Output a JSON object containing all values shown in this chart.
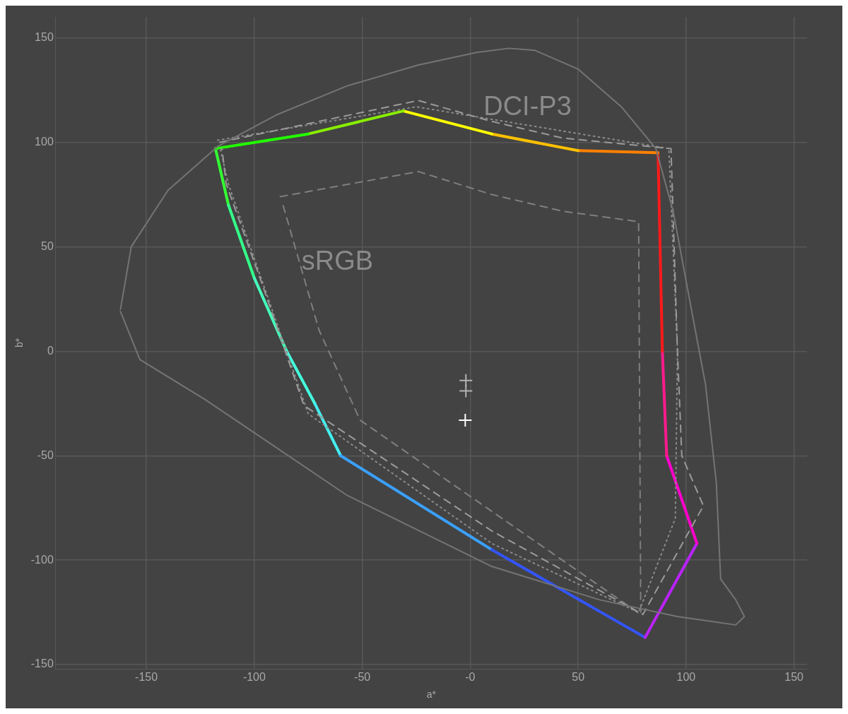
{
  "chart_data": {
    "type": "line",
    "xlabel": "a*",
    "ylabel": "b*",
    "xlim": [
      -192,
      156
    ],
    "ylim": [
      -152,
      160
    ],
    "xticks": [
      -150,
      -100,
      -50,
      {
        "value": 0,
        "label": "-0"
      },
      50,
      100,
      150
    ],
    "yticks": [
      -150,
      -100,
      -50,
      0,
      50,
      100,
      150
    ],
    "grid": true,
    "legend": false,
    "annotations": [
      "DCI-P3",
      "sRGB"
    ],
    "series": [
      {
        "line_style": "solid",
        "color": "#747474",
        "x": [
          -162,
          -157,
          -140,
          -117,
          -90,
          -57,
          -24,
          3,
          18,
          30,
          50,
          70,
          86,
          94,
          103,
          109,
          114,
          115,
          116,
          123,
          127,
          123,
          96,
          60,
          10,
          -57,
          -90,
          -123,
          -153,
          -162
        ],
        "values": [
          20,
          50,
          77,
          98,
          113,
          127,
          137,
          143,
          145,
          144,
          135,
          117,
          97,
          67,
          17,
          -16,
          -63,
          -86,
          -109,
          -119,
          -127,
          -131,
          -127,
          -119,
          -103,
          -69,
          -46,
          -23,
          -4,
          19
        ]
      },
      {
        "line_style": "dashed",
        "color": "#9a9a9a",
        "x": [
          -116,
          -24,
          10,
          43,
          93,
          96,
          98,
          108,
          80,
          10,
          -77,
          -97,
          -113,
          -115
        ],
        "values": [
          100,
          120,
          110,
          102,
          97,
          0,
          -50,
          -74,
          -126,
          -86,
          -26,
          34,
          80,
          97
        ]
      },
      {
        "line_style": "dotted",
        "color": "#8a8a8a",
        "x": [
          -117,
          -25,
          92,
          96,
          95,
          78,
          10,
          -75,
          -112,
          -116
        ],
        "values": [
          101,
          117,
          97,
          0,
          -80,
          -125,
          -92,
          -30,
          80,
          98
        ]
      },
      {
        "line_style": "dashed",
        "color": "#7f7f7f",
        "x": [
          -88,
          -24,
          10,
          43,
          78,
          79,
          -51,
          -70,
          -87
        ],
        "values": [
          74,
          86,
          75,
          67,
          62,
          -126,
          -33,
          10,
          71
        ]
      },
      {
        "line_style": "solid",
        "color": "#22ff00",
        "x": [
          -118,
          -75
        ],
        "values": [
          97,
          104
        ]
      },
      {
        "line_style": "solid",
        "color": "#88ee00",
        "x": [
          -75,
          -31
        ],
        "values": [
          104,
          115
        ]
      },
      {
        "line_style": "solid",
        "color": "#ffff00",
        "x": [
          -31,
          10
        ],
        "values": [
          115,
          104
        ]
      },
      {
        "line_style": "solid",
        "color": "#ffc000",
        "x": [
          10,
          50
        ],
        "values": [
          104,
          96
        ]
      },
      {
        "line_style": "solid",
        "color": "#ff8000",
        "x": [
          50,
          87
        ],
        "values": [
          96,
          95
        ]
      },
      {
        "line_style": "solid",
        "color": "#ff1a1a",
        "x": [
          87,
          89
        ],
        "values": [
          95,
          0
        ]
      },
      {
        "line_style": "solid",
        "color": "#ff1a8c",
        "x": [
          89,
          91
        ],
        "values": [
          0,
          -50
        ]
      },
      {
        "line_style": "solid",
        "color": "#ff00cc",
        "x": [
          91,
          105
        ],
        "values": [
          -50,
          -92
        ]
      },
      {
        "line_style": "solid",
        "color": "#bb22ff",
        "x": [
          105,
          81
        ],
        "values": [
          -92,
          -137
        ]
      },
      {
        "line_style": "solid",
        "color": "#3355ff",
        "x": [
          81,
          10
        ],
        "values": [
          -137,
          -95
        ]
      },
      {
        "line_style": "solid",
        "color": "#3aa0ff",
        "x": [
          10,
          -60
        ],
        "values": [
          -95,
          -50
        ]
      },
      {
        "line_style": "solid",
        "color": "#44eeee",
        "x": [
          -60,
          -72
        ],
        "values": [
          -50,
          -25
        ]
      },
      {
        "line_style": "solid",
        "color": "#44ffdd",
        "x": [
          -72,
          -85
        ],
        "values": [
          -25,
          0
        ]
      },
      {
        "line_style": "solid",
        "color": "#44ffbb",
        "x": [
          -85,
          -100
        ],
        "values": [
          0,
          35
        ]
      },
      {
        "line_style": "solid",
        "color": "#33ff88",
        "x": [
          -100,
          -112
        ],
        "values": [
          35,
          70
        ]
      },
      {
        "line_style": "solid",
        "color": "#33ff33",
        "x": [
          -112,
          -118
        ],
        "values": [
          70,
          97
        ]
      },
      {
        "type": "scatter",
        "marker": "cross",
        "color": "#b4b4b4",
        "x": [
          -2,
          -2
        ],
        "values": [
          -14,
          -19
        ]
      },
      {
        "type": "scatter",
        "marker": "cross",
        "color": "#ffffff",
        "x": [
          -2.3
        ],
        "values": [
          -33
        ]
      }
    ]
  }
}
